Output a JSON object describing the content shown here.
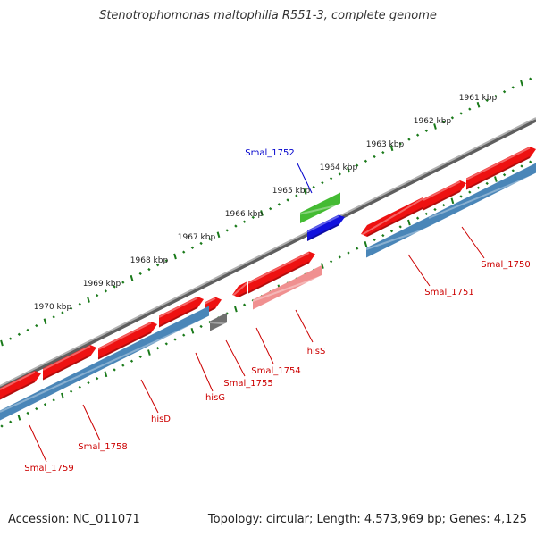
{
  "title": "Stenotrophomonas maltophilia R551-3, complete genome",
  "footer": {
    "accession": "Accession: NC_011071",
    "summary": "Topology: circular; Length: 4,573,969 bp; Genes: 4,125"
  },
  "colors": {
    "backbone": "#8a8a8a",
    "cds": "#ee1111",
    "gene": "#4a86b8",
    "pseudo": "#707070",
    "trna": "#44bb33",
    "rna": "#1111dd",
    "pink": "#f09090",
    "label_red": "#cc0000",
    "label_blue": "#0000cc",
    "tick": "#1a7a1a"
  },
  "kbp_labels": [
    "1961 kbp",
    "1962 kbp",
    "1963 kbp",
    "1964 kbp",
    "1965 kbp",
    "1966 kbp",
    "1967 kbp",
    "1968 kbp",
    "1969 kbp",
    "1970 kbp"
  ],
  "gene_labels": [
    {
      "name": "Smal_1752",
      "color": "blue"
    },
    {
      "name": "Smal_1750",
      "color": "red"
    },
    {
      "name": "Smal_1751",
      "color": "red"
    },
    {
      "name": "hisS",
      "color": "red"
    },
    {
      "name": "Smal_1754",
      "color": "red"
    },
    {
      "name": "Smal_1755",
      "color": "red"
    },
    {
      "name": "hisG",
      "color": "red"
    },
    {
      "name": "hisD",
      "color": "red"
    },
    {
      "name": "Smal_1758",
      "color": "red"
    },
    {
      "name": "Smal_1759",
      "color": "red"
    }
  ]
}
